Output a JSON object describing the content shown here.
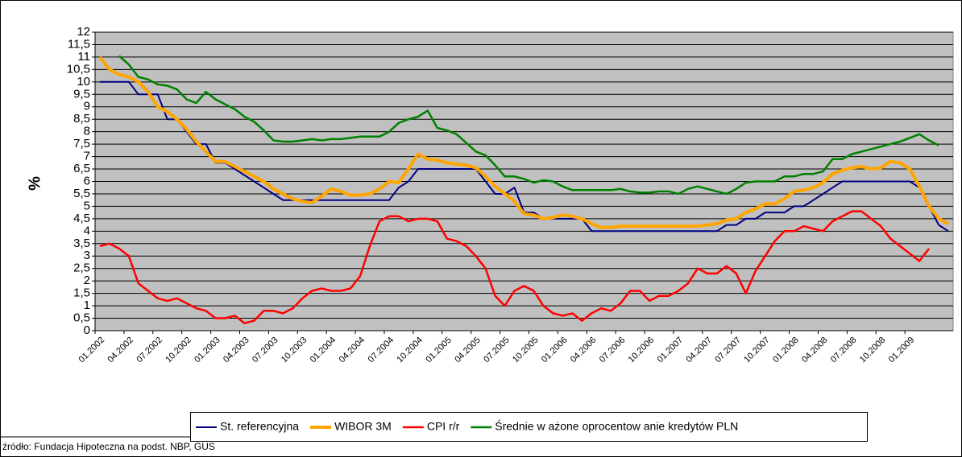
{
  "chart_data": {
    "type": "line",
    "y_label": "%",
    "source": "źródło: Fundacja Hipoteczna na podst. NBP, GUS",
    "categories": [
      "01.2002",
      null,
      null,
      "04.2002",
      null,
      null,
      "07.2002",
      null,
      null,
      "10.2002",
      null,
      null,
      "01.2003",
      null,
      null,
      "04.2003",
      null,
      null,
      "07.2003",
      null,
      null,
      "10.2003",
      null,
      null,
      "01.2004",
      null,
      null,
      "04.2004",
      null,
      null,
      "07.2004",
      null,
      null,
      "10.2004",
      null,
      null,
      "01.2005",
      null,
      null,
      "04.2005",
      null,
      null,
      "07.2005",
      null,
      null,
      "10.2005",
      null,
      null,
      "01.2006",
      null,
      null,
      "04.2006",
      null,
      null,
      "07.2006",
      null,
      null,
      "10.2006",
      null,
      null,
      "01.2007",
      null,
      null,
      "04.2007",
      null,
      null,
      "07.2007",
      null,
      null,
      "10.2007",
      null,
      null,
      "01.2008",
      null,
      null,
      "04.2008",
      null,
      null,
      "07.2008",
      null,
      null,
      "10.2008",
      null,
      null,
      "01.2009",
      null,
      null,
      null,
      null
    ],
    "series": [
      {
        "name": "St. referencyjna",
        "color": "#000080",
        "line_width": 2,
        "values": [
          10,
          10,
          10,
          10,
          9.5,
          9.5,
          9.5,
          8.5,
          8.5,
          8,
          7.5,
          7.5,
          6.75,
          6.75,
          6.5,
          6.25,
          6,
          5.75,
          5.5,
          5.25,
          5.25,
          5.25,
          5.25,
          5.25,
          5.25,
          5.25,
          5.25,
          5.25,
          5.25,
          5.25,
          5.25,
          5.75,
          6,
          6.5,
          6.5,
          6.5,
          6.5,
          6.5,
          6.5,
          6.5,
          6,
          5.5,
          5.5,
          5.75,
          4.75,
          4.75,
          4.5,
          4.5,
          4.5,
          4.5,
          4.5,
          4,
          4,
          4,
          4,
          4,
          4,
          4,
          4,
          4,
          4,
          4,
          4,
          4,
          4,
          4.25,
          4.25,
          4.5,
          4.5,
          4.75,
          4.75,
          4.75,
          5,
          5,
          5.25,
          5.5,
          5.75,
          6,
          6,
          6,
          6,
          6,
          6,
          6,
          6,
          5.75,
          5,
          4.25,
          4
        ]
      },
      {
        "name": "WIBOR 3M",
        "color": "#ffa500",
        "line_width": 4,
        "values": [
          11,
          10.5,
          10.3,
          10.2,
          10,
          9.6,
          9,
          8.8,
          8.5,
          8.1,
          7.6,
          7.2,
          6.8,
          6.8,
          6.6,
          6.4,
          6.2,
          6,
          5.7,
          5.5,
          5.3,
          5.2,
          5.15,
          5.4,
          5.7,
          5.6,
          5.45,
          5.45,
          5.5,
          5.7,
          6,
          5.95,
          6.5,
          7.1,
          6.9,
          6.85,
          6.75,
          6.7,
          6.65,
          6.55,
          6.2,
          5.8,
          5.5,
          5.2,
          4.7,
          4.65,
          4.5,
          4.55,
          4.65,
          4.6,
          4.5,
          4.3,
          4.15,
          4.15,
          4.2,
          4.2,
          4.2,
          4.2,
          4.2,
          4.2,
          4.2,
          4.2,
          4.2,
          4.25,
          4.3,
          4.45,
          4.5,
          4.75,
          4.9,
          5.1,
          5.1,
          5.3,
          5.6,
          5.65,
          5.75,
          5.95,
          6.3,
          6.45,
          6.55,
          6.6,
          6.5,
          6.55,
          6.8,
          6.75,
          6.5,
          5.8,
          5,
          4.5,
          4.3
        ]
      },
      {
        "name": "CPI r/r",
        "color": "#ff0000",
        "line_width": 2.5,
        "values": [
          3.4,
          3.5,
          3.3,
          3,
          1.9,
          1.6,
          1.3,
          1.2,
          1.3,
          1.1,
          0.9,
          0.8,
          0.5,
          0.5,
          0.6,
          0.3,
          0.4,
          0.8,
          0.8,
          0.7,
          0.9,
          1.3,
          1.6,
          1.7,
          1.6,
          1.6,
          1.7,
          2.2,
          3.4,
          4.4,
          4.6,
          4.6,
          4.4,
          4.5,
          4.5,
          4.4,
          3.7,
          3.6,
          3.4,
          3,
          2.5,
          1.4,
          1,
          1.6,
          1.8,
          1.6,
          1,
          0.7,
          0.6,
          0.7,
          0.4,
          0.7,
          0.9,
          0.8,
          1.1,
          1.6,
          1.6,
          1.2,
          1.4,
          1.4,
          1.6,
          1.9,
          2.5,
          2.3,
          2.3,
          2.6,
          2.3,
          1.5,
          2.4,
          3,
          3.6,
          4,
          4,
          4.2,
          4.1,
          4,
          4.4,
          4.6,
          4.8,
          4.8,
          4.5,
          4.2,
          3.7,
          3.4,
          3.1,
          2.8,
          3.3,
          null,
          null
        ]
      },
      {
        "name": "Średnie w ażone oprocentow anie kredytów  PLN",
        "color": "#008000",
        "line_width": 2.5,
        "values": [
          null,
          null,
          11.05,
          10.7,
          10.2,
          10.1,
          9.9,
          9.85,
          9.7,
          9.3,
          9.15,
          9.6,
          9.3,
          9.1,
          8.9,
          8.6,
          8.4,
          8.05,
          7.65,
          7.6,
          7.6,
          7.65,
          7.7,
          7.65,
          7.7,
          7.7,
          7.75,
          7.8,
          7.8,
          7.8,
          8,
          8.35,
          8.5,
          8.6,
          8.85,
          8.15,
          8.05,
          7.9,
          7.55,
          7.2,
          7.05,
          6.65,
          6.2,
          6.2,
          6.1,
          5.95,
          6.05,
          6,
          5.8,
          5.65,
          5.65,
          5.65,
          5.65,
          5.65,
          5.7,
          5.6,
          5.55,
          5.55,
          5.6,
          5.6,
          5.5,
          5.7,
          5.8,
          5.7,
          5.6,
          5.5,
          5.7,
          5.95,
          6,
          6,
          6,
          6.2,
          6.2,
          6.3,
          6.3,
          6.4,
          6.9,
          6.9,
          7.1,
          7.2,
          7.3,
          7.4,
          7.5,
          7.6,
          7.75,
          7.9,
          7.65,
          7.45,
          null
        ]
      }
    ],
    "ylim": [
      0,
      12
    ],
    "yticks": [
      0,
      {
        "value": 0.5,
        "label": "0,5"
      },
      1,
      {
        "value": 1.5,
        "label": "1,5"
      },
      2,
      {
        "value": 2.5,
        "label": "2,5"
      },
      3,
      {
        "value": 3.5,
        "label": "3,5"
      },
      4,
      {
        "value": 4.5,
        "label": "4,5"
      },
      5,
      {
        "value": 5.5,
        "label": "5,5"
      },
      6,
      {
        "value": 6.5,
        "label": "6,5"
      },
      7,
      {
        "value": 7.5,
        "label": "7,5"
      },
      8,
      {
        "value": 8.5,
        "label": "8,5"
      },
      9,
      {
        "value": 9.5,
        "label": "9,5"
      },
      10,
      {
        "value": 10.5,
        "label": "10,5"
      },
      11,
      {
        "value": 11.5,
        "label": "11,5"
      },
      12
    ],
    "grid": true,
    "legend_position": "bottom",
    "plot_background": "#c0c0c0"
  }
}
